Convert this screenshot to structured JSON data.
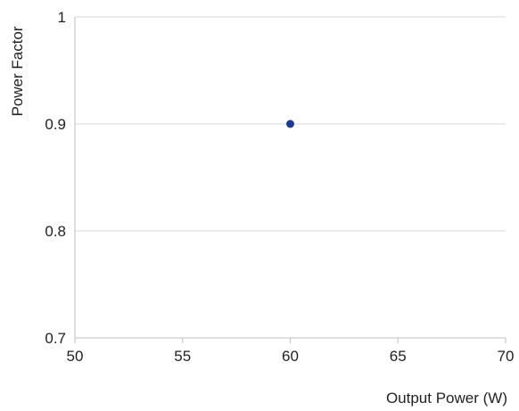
{
  "chart_data": {
    "type": "scatter",
    "title": "",
    "xlabel": "Output Power (W)",
    "ylabel": "Power Factor",
    "xlim": [
      50,
      70
    ],
    "ylim": [
      0.7,
      1
    ],
    "xticks": [
      50,
      55,
      60,
      65,
      70
    ],
    "yticks": [
      0.7,
      0.8,
      0.9,
      1
    ],
    "xtick_labels": [
      "50",
      "55",
      "60",
      "65",
      "70"
    ],
    "ytick_labels": [
      "0.7",
      "0.8",
      "0.9",
      "1"
    ],
    "grid": "horizontal",
    "legend": "none",
    "series": [
      {
        "points": [
          {
            "x": 60,
            "y": 0.9
          }
        ],
        "color": "#1f3b99"
      }
    ]
  },
  "colors": {
    "grid": "#d9d9d9",
    "axis": "#bfbfbf",
    "point": "#1f3b99"
  }
}
